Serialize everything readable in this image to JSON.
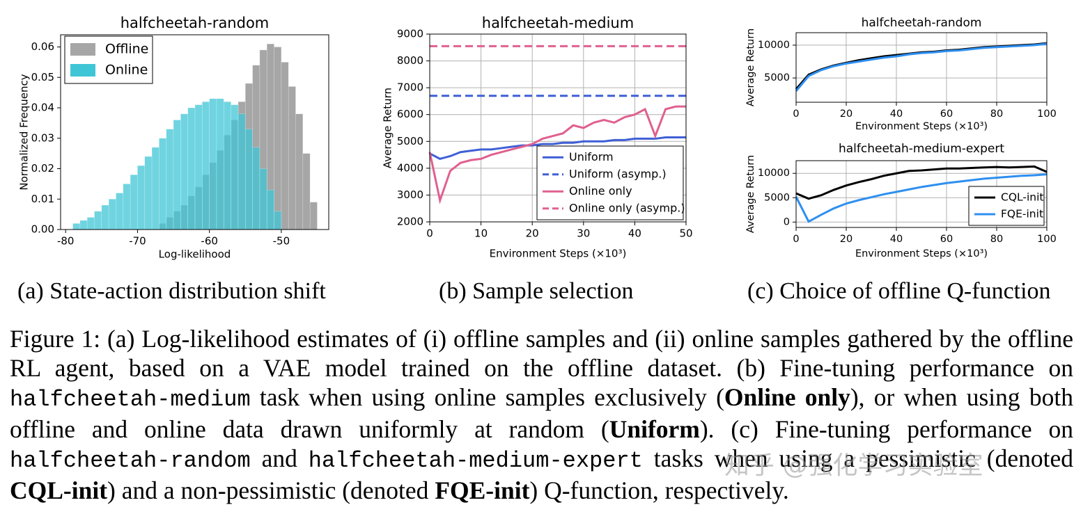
{
  "chart_data": [
    {
      "type": "histogram",
      "title": "halfcheetah-random",
      "x_label": "Log-likelihood",
      "y_label": "Normalized Frequency",
      "bins": [
        -79,
        -78,
        -77,
        -76,
        -75,
        -74,
        -73,
        -72,
        -71,
        -70,
        -69,
        -68,
        -67,
        -66,
        -65,
        -64,
        -63,
        -62,
        -61,
        -60,
        -59,
        -58,
        -57,
        -56,
        -55,
        -54,
        -53,
        -52,
        -51,
        -50,
        -49,
        -48,
        -47,
        -46,
        -45
      ],
      "series": [
        {
          "name": "Offline",
          "color": "#a6a6a6",
          "values": [
            0,
            0,
            0,
            0,
            0,
            0,
            0,
            0,
            0,
            0,
            0,
            0,
            0.002,
            0.004,
            0.006,
            0.008,
            0.011,
            0.014,
            0.018,
            0.022,
            0.026,
            0.031,
            0.036,
            0.042,
            0.048,
            0.054,
            0.059,
            0.061,
            0.06,
            0.055,
            0.047,
            0.038,
            0.025,
            0.009
          ]
        },
        {
          "name": "Online",
          "color": "#3fc6d6",
          "values": [
            0.002,
            0.003,
            0.004,
            0.006,
            0.008,
            0.01,
            0.012,
            0.015,
            0.018,
            0.021,
            0.024,
            0.027,
            0.03,
            0.033,
            0.036,
            0.038,
            0.04,
            0.041,
            0.042,
            0.043,
            0.043,
            0.042,
            0.041,
            0.038,
            0.033,
            0.027,
            0.02,
            0.013,
            0.006,
            0,
            0,
            0,
            0,
            0
          ]
        }
      ],
      "xlim": [
        -80.7,
        -43.4
      ],
      "xticks": [
        -80,
        -70,
        -60,
        -50
      ],
      "ylim": [
        0,
        0.064
      ],
      "yticks": [
        {
          "value": 0,
          "label": "0.00"
        },
        {
          "value": 0.01,
          "label": "0.01"
        },
        {
          "value": 0.02,
          "label": "0.02"
        },
        {
          "value": 0.03,
          "label": "0.03"
        },
        {
          "value": 0.04,
          "label": "0.04"
        },
        {
          "value": 0.05,
          "label": "0.05"
        },
        {
          "value": 0.06,
          "label": "0.06"
        }
      ],
      "grid": false,
      "legend": "upper left"
    },
    {
      "type": "line",
      "title": "halfcheetah-medium",
      "x_label": "Environment Steps (×10³)",
      "y_label": "Average Return",
      "x": [
        0,
        2,
        4,
        6,
        8,
        10,
        12,
        14,
        16,
        18,
        20,
        22,
        24,
        26,
        28,
        30,
        32,
        34,
        36,
        38,
        40,
        42,
        44,
        46,
        48,
        50
      ],
      "series": [
        {
          "name": "Uniform",
          "color": "#3f5fd6",
          "dashed": false,
          "values": [
            4550,
            4350,
            4450,
            4600,
            4650,
            4700,
            4700,
            4750,
            4800,
            4850,
            4850,
            4900,
            4900,
            4950,
            4950,
            5000,
            5000,
            5000,
            5050,
            5050,
            5100,
            5100,
            5100,
            5150,
            5150,
            5150
          ]
        },
        {
          "name": "Uniform (asymp.)",
          "color": "#3f5fd6",
          "dashed": true,
          "values": [
            6700,
            6700,
            6700,
            6700,
            6700,
            6700,
            6700,
            6700,
            6700,
            6700,
            6700,
            6700,
            6700,
            6700,
            6700,
            6700,
            6700,
            6700,
            6700,
            6700,
            6700,
            6700,
            6700,
            6700,
            6700,
            6700
          ]
        },
        {
          "name": "Online only",
          "color": "#e0608f",
          "dashed": false,
          "values": [
            4600,
            2800,
            3900,
            4200,
            4300,
            4350,
            4500,
            4600,
            4700,
            4800,
            4900,
            5100,
            5200,
            5300,
            5600,
            5500,
            5700,
            5800,
            5700,
            5900,
            6000,
            6200,
            5200,
            6200,
            6300,
            6300
          ]
        },
        {
          "name": "Online only (asymp.)",
          "color": "#e0608f",
          "dashed": true,
          "values": [
            8550,
            8550,
            8550,
            8550,
            8550,
            8550,
            8550,
            8550,
            8550,
            8550,
            8550,
            8550,
            8550,
            8550,
            8550,
            8550,
            8550,
            8550,
            8550,
            8550,
            8550,
            8550,
            8550,
            8550,
            8550,
            8550
          ]
        }
      ],
      "xlim": [
        0,
        50
      ],
      "xticks": [
        0,
        10,
        20,
        30,
        40,
        50
      ],
      "ylim": [
        2000,
        9000
      ],
      "yticks": [
        2000,
        3000,
        4000,
        5000,
        6000,
        7000,
        8000,
        9000
      ],
      "grid": true,
      "legend": "lower right"
    },
    {
      "type": "line",
      "title": "halfcheetah-random",
      "x_label": "Environment Steps (×10³)",
      "y_label": "Average Return",
      "x": [
        0,
        5,
        10,
        15,
        20,
        25,
        30,
        35,
        40,
        45,
        50,
        55,
        60,
        65,
        70,
        75,
        80,
        85,
        90,
        95,
        100
      ],
      "series": [
        {
          "color": "#000000",
          "dashed": false,
          "values": [
            3300,
            5500,
            6300,
            6900,
            7300,
            7700,
            8000,
            8300,
            8500,
            8700,
            8900,
            9000,
            9200,
            9300,
            9500,
            9700,
            9800,
            9900,
            10000,
            10100,
            10300
          ]
        },
        {
          "color": "#2e8ff0",
          "dashed": false,
          "values": [
            3000,
            5300,
            6200,
            6800,
            7200,
            7500,
            7800,
            8100,
            8300,
            8600,
            8800,
            8900,
            9100,
            9200,
            9400,
            9600,
            9700,
            9800,
            9900,
            10000,
            10200
          ]
        }
      ],
      "xlim": [
        0,
        100
      ],
      "xticks": [
        0,
        20,
        40,
        60,
        80,
        100
      ],
      "ylim": [
        1300,
        11900
      ],
      "yticks": [
        5000,
        10000
      ],
      "grid": true
    },
    {
      "type": "line",
      "title": "halfcheetah-medium-expert",
      "x_label": "Environment Steps (×10³)",
      "y_label": "Average Return",
      "x": [
        0,
        5,
        10,
        15,
        20,
        25,
        30,
        35,
        40,
        45,
        50,
        55,
        60,
        65,
        70,
        75,
        80,
        85,
        90,
        95,
        100
      ],
      "series": [
        {
          "name": "CQL-init",
          "color": "#000000",
          "dashed": false,
          "values": [
            5900,
            4800,
            5500,
            6600,
            7500,
            8200,
            8800,
            9500,
            10000,
            10500,
            10600,
            10800,
            11000,
            11000,
            11100,
            11200,
            11300,
            11200,
            11300,
            11400,
            10300
          ]
        },
        {
          "name": "FQE-init",
          "color": "#2e8ff0",
          "dashed": false,
          "values": [
            5200,
            100,
            1500,
            2800,
            3800,
            4500,
            5100,
            5700,
            6200,
            6700,
            7200,
            7600,
            8000,
            8300,
            8600,
            8900,
            9100,
            9300,
            9500,
            9600,
            9800
          ]
        }
      ],
      "xlim": [
        0,
        100
      ],
      "xticks": [
        0,
        20,
        40,
        60,
        80,
        100
      ],
      "ylim": [
        -1100,
        12600
      ],
      "yticks": [
        0,
        5000,
        10000
      ],
      "grid": true,
      "legend": "lower right"
    }
  ],
  "subcaptions": [
    "(a) State-action distribution shift",
    "(b) Sample selection",
    "(c) Choice of offline Q-function"
  ],
  "caption": [
    "Figure 1: (a) Log-likelihood estimates of (i) offline samples and (ii) online samples gathered by the offline RL agent, based on a VAE model trained on the offline dataset. (b) Fine-tuning performance on ",
    "halfcheetah-medium",
    " task when using online samples exclusively (",
    "Online only",
    "), or when using both offline and online data drawn uniformly at random (",
    "Uniform",
    "). (c) Fine-tuning performance on ",
    "halfcheetah-random",
    " and ",
    "halfcheetah-medium-expert",
    " tasks when using a pessimistic (denoted ",
    "CQL-init",
    ") and a non-pessimistic (denoted ",
    "FQE-init",
    ") Q-function, respectively."
  ],
  "watermark": "知乎 @强化学习实验室"
}
